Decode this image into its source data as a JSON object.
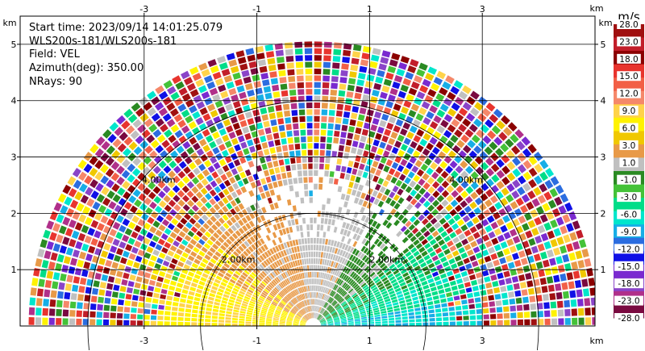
{
  "chart_data": {
    "type": "heatmap",
    "plot_kind": "radar PPI sector (velocity)",
    "info": {
      "start_time": "Start time: 2023/09/14 14:01:25.079",
      "station": "WLS200s-181/WLS200s-181",
      "field": "Field: VEL",
      "azimuth": "Azimuth(deg): 350.00",
      "nrays": "NRays: 90"
    },
    "x_unit": "km",
    "y_unit": "km",
    "x_ticks": [
      "-3",
      "-1",
      "1",
      "3"
    ],
    "x_tick_values": [
      -3,
      -1,
      1,
      3
    ],
    "y_ticks": [
      "1",
      "2",
      "3",
      "4",
      "5"
    ],
    "y_tick_values": [
      1,
      2,
      3,
      4,
      5
    ],
    "xlim": [
      -5.2,
      5.0
    ],
    "ylim": [
      0,
      5.5
    ],
    "range_rings_km": [
      2,
      4
    ],
    "ring_labels": [
      "2.00km",
      "2.00km",
      "4.00km",
      "4.00km"
    ],
    "max_range_km": 5.05,
    "n_rays": 90,
    "sector_deg": [
      0,
      180
    ],
    "colorbar": {
      "unit": "m/s",
      "tick_labels": [
        "28.0",
        "23.0",
        "18.0",
        "15.0",
        "12.0",
        "9.0",
        "6.0",
        "3.0",
        "1.0",
        "-1.0",
        "-3.0",
        "-6.0",
        "-9.0",
        "-12.0",
        "-15.0",
        "-18.0",
        "-23.0",
        "-28.0"
      ],
      "colors": [
        "#a01010",
        "#c21e2a",
        "#8b0000",
        "#e8342e",
        "#f25f46",
        "#f5886a",
        "#ffd34a",
        "#fff200",
        "#f0c800",
        "#e89a48",
        "#c0c0c0",
        "#2a8a22",
        "#44c238",
        "#00dd88",
        "#00e6cc",
        "#17aee6",
        "#2b6de0",
        "#1010e6",
        "#7a2ad0",
        "#8a44c8",
        "#b0308a",
        "#7a0a40"
      ]
    },
    "velocity_pattern": {
      "near_field_left": "gray/orange/yellow (positive)",
      "near_field_right": "green/cyan/blue (negative)",
      "far_field": "noisy multicolored"
    }
  }
}
